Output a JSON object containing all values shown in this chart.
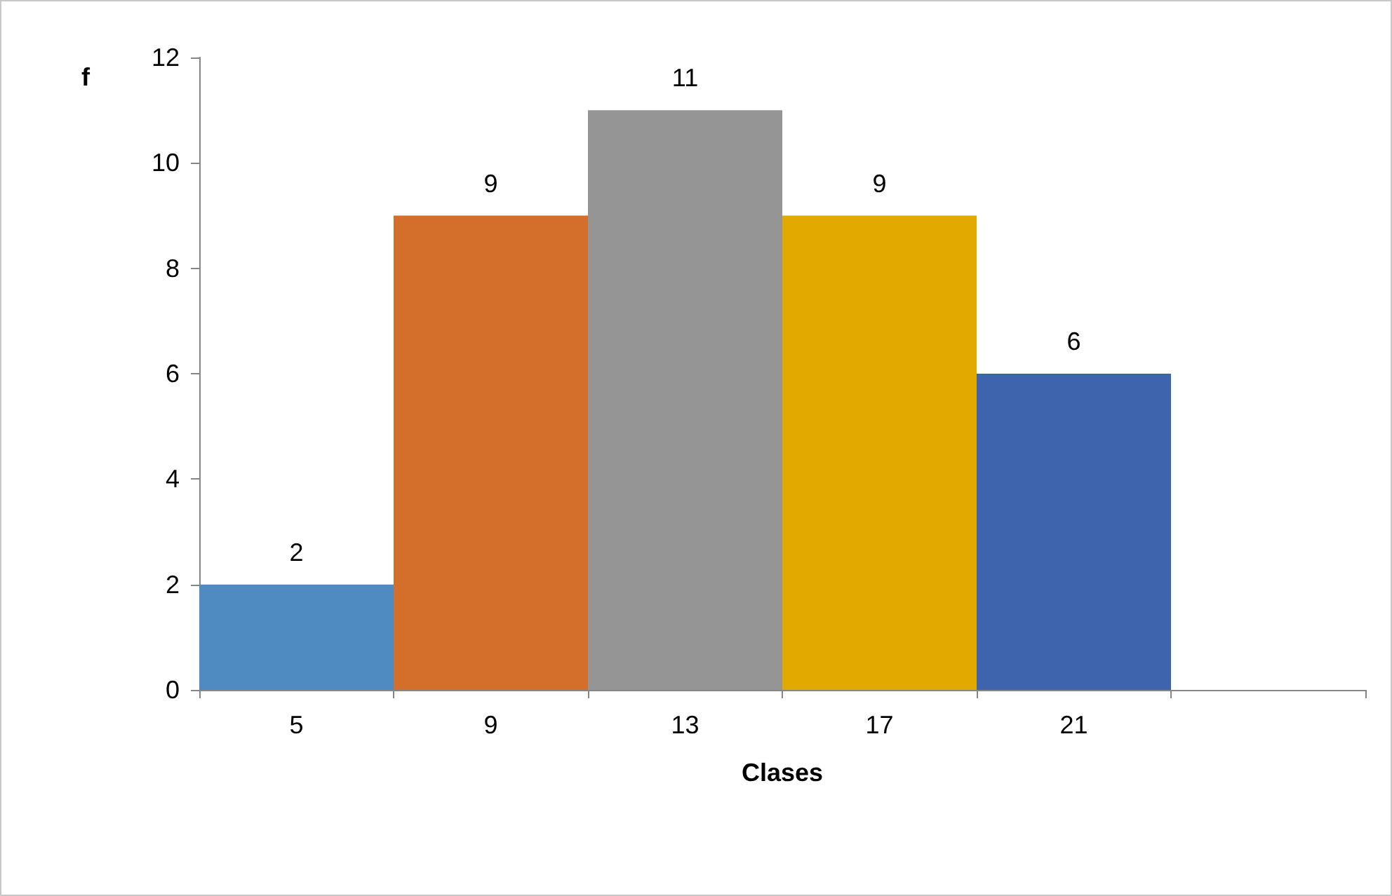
{
  "chart_data": {
    "type": "bar",
    "xlabel": "Clases",
    "ylabel": "f",
    "categories": [
      "5",
      "9",
      "13",
      "17",
      "21",
      null
    ],
    "values": [
      2,
      9,
      11,
      9,
      6,
      null
    ],
    "colors": [
      "#4f8bc0",
      "#d36e2b",
      "#959595",
      "#e2a900",
      "#3d64ad",
      "#3d64ad"
    ],
    "ylim": [
      0,
      12
    ],
    "yticks": [
      0,
      2,
      4,
      6,
      8,
      10,
      12
    ],
    "grid": false,
    "data_labels": true
  }
}
